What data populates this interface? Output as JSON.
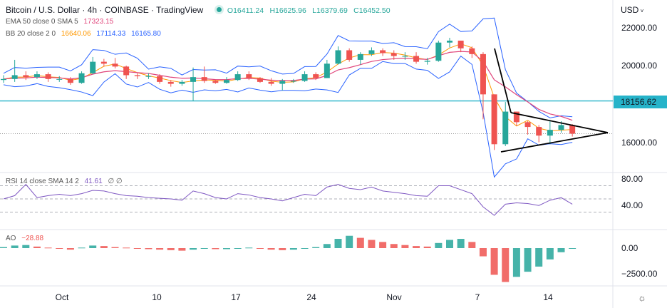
{
  "header": {
    "title": "Bitcoin / U.S. Dollar · 4h · COINBASE · TradingView",
    "ohlc": {
      "open": "O16411.24",
      "high": "H16625.96",
      "low": "L16379.69",
      "close": "C16452.50"
    },
    "ema_label": "EMA 50 close 0 SMA 5",
    "ema_value": "17323.15",
    "bb_label": "BB 20 close 2 0",
    "bb_basis": "16640.06",
    "bb_upper": "17114.33",
    "bb_lower": "16165.80",
    "rsi_label": "RSI 14 close SMA 14 2",
    "rsi_value": "41.61",
    "rsi_extra": "∅ ∅",
    "ao_label": "AO",
    "ao_value": "−28.88"
  },
  "axis": {
    "currency": "USD",
    "price_ticks": [
      "22000.00",
      "20000.00",
      "16000.00"
    ],
    "rsi_ticks": [
      "80.00",
      "40.00"
    ],
    "ao_ticks": [
      "0.00",
      "−2500.00"
    ],
    "time_ticks": [
      "Oct",
      "10",
      "17",
      "24",
      "Nov",
      "7",
      "14"
    ],
    "horizontal_line_label": "18156.62",
    "settings_icon": "gear-icon"
  },
  "colors": {
    "up": "#26a69a",
    "down": "#ef5350",
    "ema": "#e0457b",
    "bb_basis": "#ff9800",
    "bb_band": "#2962ff",
    "rsi": "#7e57c2",
    "hline": "#26b3c9",
    "drawing": "#000000"
  },
  "chart_data": {
    "type": "candlestick",
    "ylim": [
      15000,
      23000
    ],
    "horizontal_line": 18156.62,
    "open": [
      19250,
      19300,
      19500,
      19400,
      19550,
      19300,
      19300,
      19100,
      19600,
      20200,
      20100,
      19950,
      19500,
      19450,
      19450,
      19150,
      19050,
      19150,
      19400,
      19200,
      19100,
      19250,
      19550,
      19350,
      19150,
      19050,
      19200,
      19200,
      19550,
      19350,
      20100,
      20800,
      20300,
      20600,
      20800,
      20650,
      20500,
      20500,
      20200,
      20250,
      21200,
      21300,
      20900,
      20600,
      18500,
      15900,
      17600,
      17050,
      16800,
      16350,
      16650,
      16900
    ],
    "close": [
      19300,
      19500,
      19400,
      19550,
      19300,
      19300,
      19100,
      19600,
      20200,
      20100,
      19950,
      19500,
      19450,
      19450,
      19150,
      19050,
      19150,
      19400,
      19200,
      19100,
      19250,
      19550,
      19350,
      19150,
      19050,
      19200,
      19200,
      19550,
      19350,
      20100,
      20800,
      20300,
      20600,
      20800,
      20650,
      20500,
      20500,
      20200,
      20250,
      21200,
      21300,
      20900,
      20600,
      18500,
      15900,
      17600,
      17050,
      16800,
      16350,
      16650,
      16900,
      16450
    ],
    "high": [
      19500,
      20300,
      19700,
      19700,
      19650,
      19450,
      19400,
      19700,
      20450,
      20350,
      20400,
      20000,
      19600,
      19600,
      19550,
      19250,
      19250,
      19900,
      19950,
      19250,
      19400,
      19700,
      19700,
      19400,
      19350,
      19300,
      19300,
      19700,
      19650,
      20300,
      21000,
      20900,
      20700,
      20950,
      20900,
      20800,
      20700,
      20700,
      20400,
      21300,
      21450,
      21300,
      21000,
      20700,
      18500,
      18100,
      17600,
      17100,
      16900,
      17100,
      17100,
      16950
    ],
    "low": [
      19100,
      19150,
      19250,
      19300,
      19150,
      19150,
      19000,
      19050,
      19550,
      19950,
      19850,
      19300,
      19300,
      19300,
      19050,
      18900,
      18950,
      18150,
      19100,
      19050,
      19050,
      19200,
      19250,
      19100,
      18950,
      18700,
      19100,
      19150,
      19250,
      19350,
      20050,
      20200,
      20050,
      20500,
      20500,
      20300,
      20300,
      20100,
      20050,
      20200,
      20950,
      20700,
      20400,
      17200,
      15600,
      15800,
      16850,
      16400,
      16000,
      15900,
      16500,
      16300
    ],
    "rsi": {
      "bands": [
        30,
        50,
        70
      ],
      "values": [
        50,
        55,
        72,
        52,
        55,
        57,
        55,
        58,
        63,
        62,
        58,
        55,
        54,
        52,
        51,
        50,
        48,
        62,
        58,
        52,
        50,
        58,
        56,
        52,
        50,
        47,
        52,
        57,
        55,
        68,
        72,
        66,
        64,
        68,
        62,
        60,
        58,
        55,
        54,
        70,
        70,
        64,
        58,
        38,
        25,
        42,
        44,
        43,
        40,
        48,
        52,
        42
      ]
    },
    "ao": {
      "values": [
        100,
        250,
        300,
        150,
        50,
        -50,
        -150,
        50,
        250,
        200,
        100,
        50,
        -50,
        -100,
        -150,
        -200,
        -250,
        -150,
        -50,
        -100,
        -100,
        0,
        50,
        -50,
        -150,
        -200,
        -150,
        0,
        100,
        400,
        900,
        1200,
        1000,
        800,
        600,
        400,
        300,
        200,
        150,
        500,
        800,
        900,
        600,
        -800,
        -2600,
        -3300,
        -2800,
        -2300,
        -1800,
        -1100,
        -400,
        -29
      ]
    }
  }
}
